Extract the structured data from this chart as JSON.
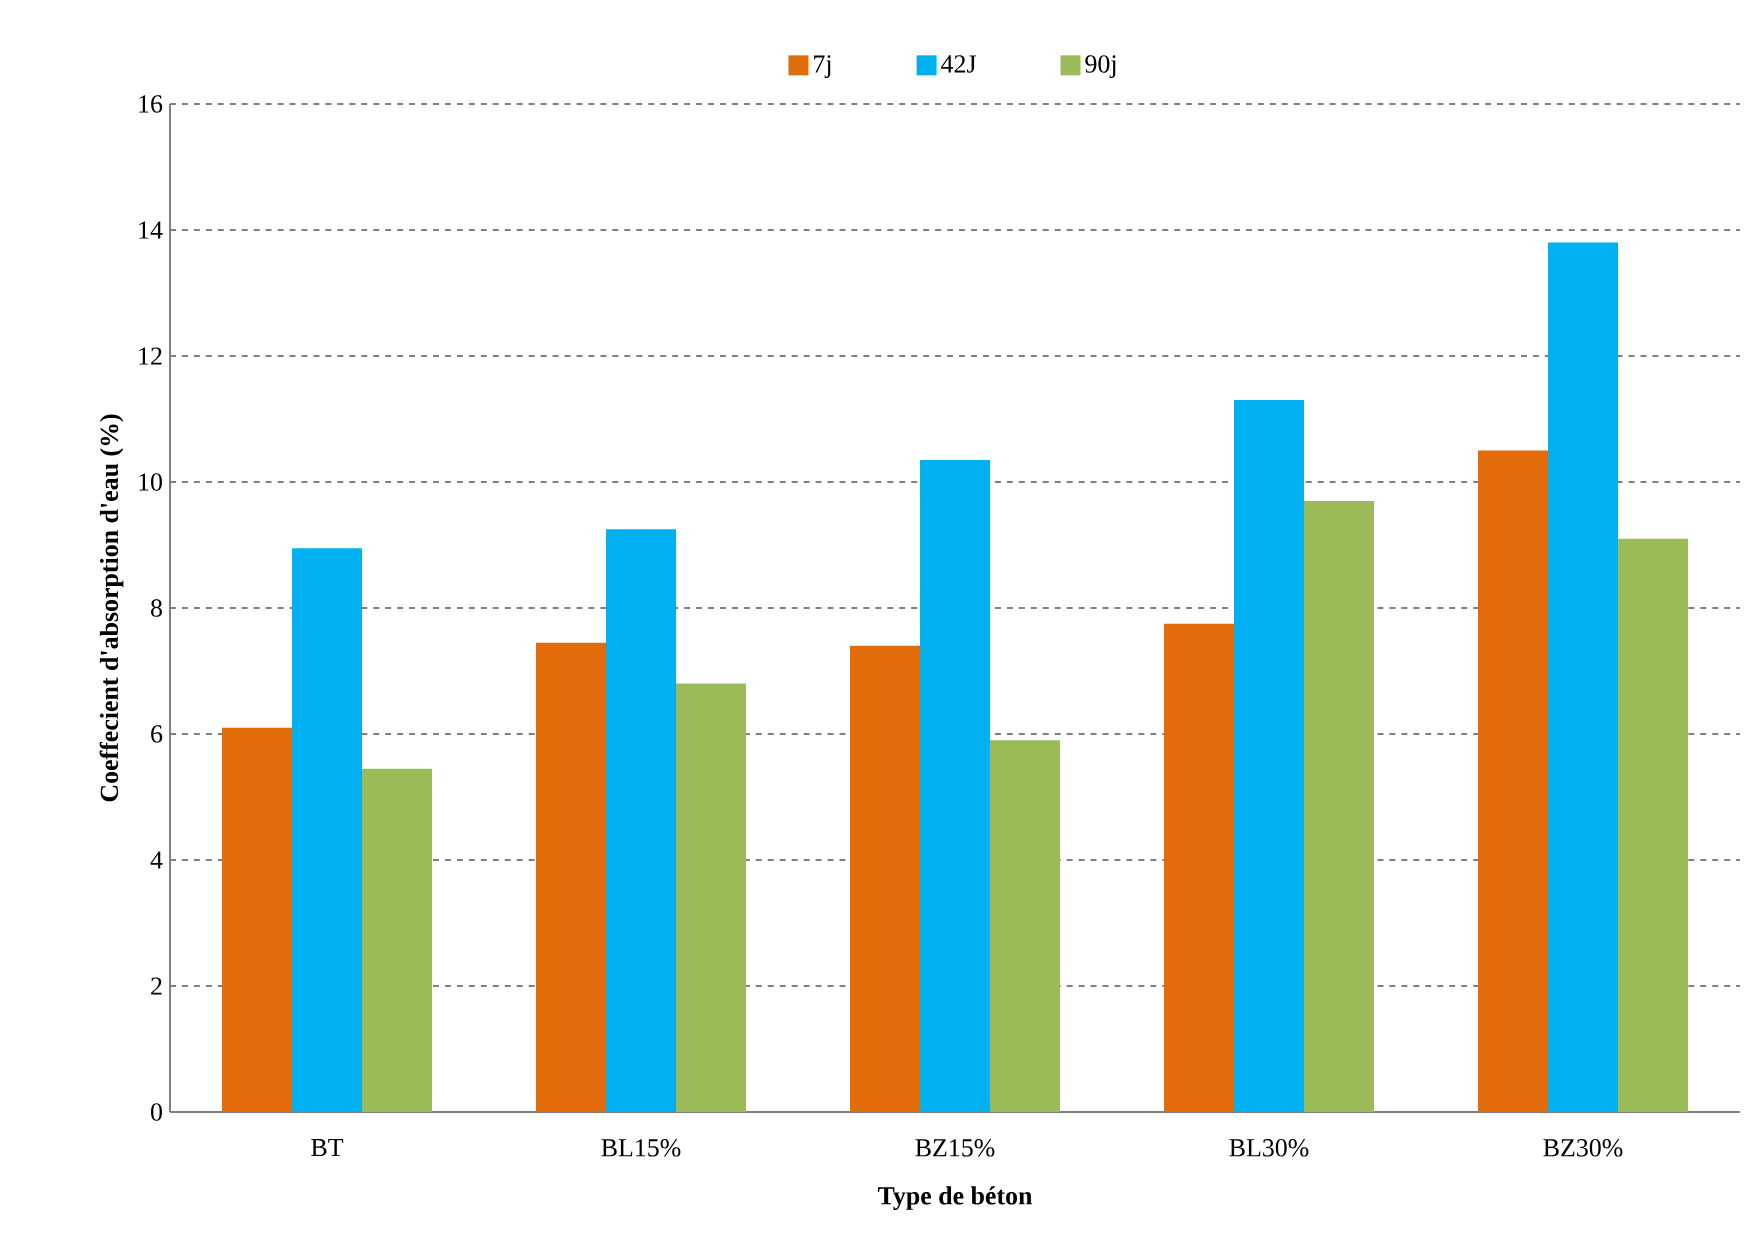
{
  "chart_data": {
    "type": "bar",
    "xlabel": "Type de béton",
    "ylabel": "Coeffecient d'absorption d'eau (%)",
    "categories": [
      "BT",
      "BL15%",
      "BZ15%",
      "BL30%",
      "BZ30%"
    ],
    "series": [
      {
        "name": "7j",
        "color": "#e36c0a",
        "values": [
          6.1,
          7.45,
          7.4,
          7.75,
          10.5
        ]
      },
      {
        "name": "42J",
        "color": "#00b0f0",
        "values": [
          8.95,
          9.25,
          10.35,
          11.3,
          13.8
        ]
      },
      {
        "name": "90j",
        "color": "#9bbb59",
        "values": [
          5.45,
          6.8,
          5.9,
          9.7,
          9.1
        ]
      }
    ],
    "ylim": [
      0,
      16
    ],
    "yticks": [
      0,
      2,
      4,
      6,
      8,
      10,
      12,
      14,
      16
    ],
    "grid": "y",
    "legend": "top"
  }
}
